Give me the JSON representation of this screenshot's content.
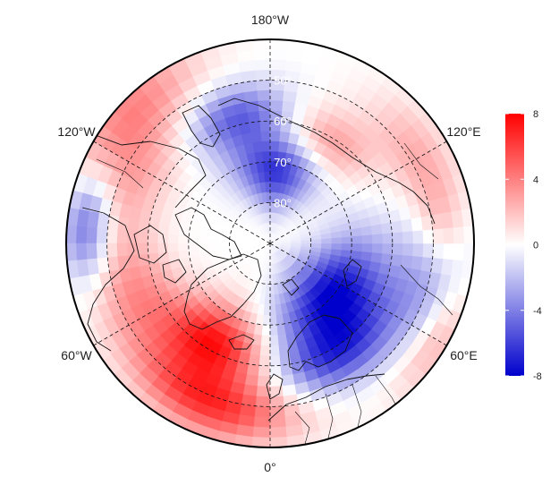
{
  "map": {
    "projection": "north polar stereographic",
    "center": "North Pole",
    "boundary_latitude": "approx. 40°N",
    "features": [
      "coastlines",
      "country borders"
    ],
    "graticule_style": "dashed",
    "longitude_labels": [
      {
        "text": "180°W",
        "lon": 180
      },
      {
        "text": "120°W",
        "lon": -120
      },
      {
        "text": "60°W",
        "lon": -60
      },
      {
        "text": "0°",
        "lon": 0
      },
      {
        "text": "60°E",
        "lon": 60
      },
      {
        "text": "120°E",
        "lon": 120
      }
    ],
    "latitude_labels": [
      {
        "text": "50°",
        "lat": 50
      },
      {
        "text": "60°",
        "lat": 60
      },
      {
        "text": "70°",
        "lat": 70
      },
      {
        "text": "80°",
        "lat": 80
      }
    ],
    "latitude_circles": [
      50,
      60,
      70,
      80
    ],
    "meridians_deg": [
      0,
      60,
      120,
      180,
      240,
      300
    ],
    "field_anomalies": [
      {
        "region": "Greenland and North Atlantic",
        "sign": "positive",
        "peak": 7
      },
      {
        "region": "Europe south-west",
        "sign": "positive",
        "peak": 5
      },
      {
        "region": "Barents/Kara Sea and Scandinavia",
        "sign": "negative",
        "peak": -8
      },
      {
        "region": "Bering Strait / Alaska",
        "sign": "negative",
        "peak": -6
      },
      {
        "region": "East Siberian Sea",
        "sign": "positive",
        "peak": 3
      },
      {
        "region": "Central Canada",
        "sign": "positive",
        "peak": 2
      },
      {
        "region": "Hudson Bay / Labrador",
        "sign": "negative",
        "peak": -2
      },
      {
        "region": "Western Atlantic margin",
        "sign": "negative",
        "peak": -5
      }
    ]
  },
  "colorbar": {
    "ticks": [
      8,
      4,
      0,
      -4,
      -8
    ],
    "min": -8,
    "max": 8,
    "colors": {
      "high": "#ff0000",
      "mid": "#ffffff",
      "low": "#0000cc"
    }
  }
}
